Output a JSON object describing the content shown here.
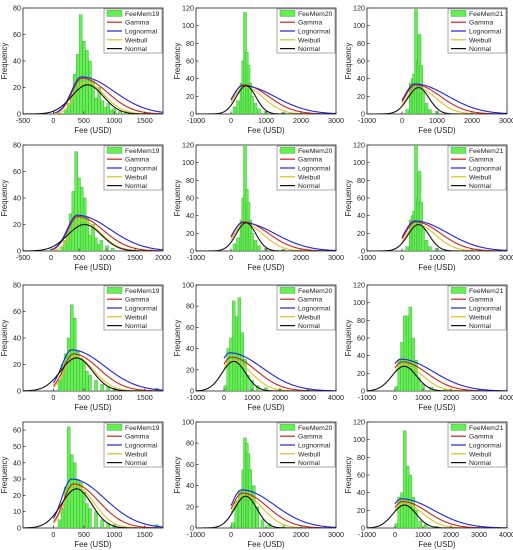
{
  "legend_labels": [
    "Gamma",
    "Lognormal",
    "Weibull",
    "Normal"
  ],
  "colors": {
    "hist": "#66ee55",
    "hist_edge": "#2a9a2a",
    "hist_gray": "#b8b8b8",
    "gamma": "#cc2222",
    "lognormal": "#2222dd",
    "weibull": "#e0c020",
    "normal": "#111111"
  },
  "chart_data": [
    {
      "type": "bar",
      "series": [
        {
          "name": "FeeMem19"
        },
        {
          "name": "Gamma"
        },
        {
          "name": "Lognormal"
        },
        {
          "name": "Weibull"
        },
        {
          "name": "Normal"
        }
      ],
      "xlabel": "Fee (USD)",
      "ylabel": "Frequency",
      "xlim": [
        -500,
        1800
      ],
      "ylim": [
        0,
        80
      ],
      "xticks": [
        -500,
        0,
        500,
        1000,
        1500
      ],
      "yticks": [
        0,
        20,
        40,
        60,
        80
      ],
      "hist_bins": [
        [
          200,
          3
        ],
        [
          250,
          8
        ],
        [
          300,
          15
        ],
        [
          350,
          30
        ],
        [
          400,
          45
        ],
        [
          450,
          75
        ],
        [
          500,
          55
        ],
        [
          550,
          48
        ],
        [
          600,
          40
        ],
        [
          650,
          25
        ],
        [
          700,
          12
        ],
        [
          750,
          20
        ],
        [
          800,
          10
        ],
        [
          850,
          5
        ],
        [
          900,
          8
        ],
        [
          950,
          3
        ],
        [
          1000,
          4
        ],
        [
          1100,
          2
        ],
        [
          1200,
          2
        ],
        [
          1550,
          1
        ]
      ],
      "gamma_peak": [
        470,
        27
      ],
      "lognormal_peak": [
        460,
        28
      ],
      "weibull_peak": [
        520,
        24
      ],
      "normal": {
        "mean": 560,
        "sd": 260,
        "peak": 22
      }
    },
    {
      "type": "bar",
      "series": [
        {
          "name": "FeeMem20"
        },
        {
          "name": "Gamma"
        },
        {
          "name": "Lognormal"
        },
        {
          "name": "Weibull"
        },
        {
          "name": "Normal"
        }
      ],
      "xlabel": "Fee (USD)",
      "ylabel": "Frequency",
      "xlim": [
        -1000,
        3000
      ],
      "ylim": [
        0,
        120
      ],
      "xticks": [
        -1000,
        0,
        1000,
        2000,
        3000
      ],
      "yticks": [
        0,
        20,
        40,
        60,
        80,
        100,
        120
      ],
      "hist_bins": [
        [
          100,
          8
        ],
        [
          200,
          15
        ],
        [
          300,
          35
        ],
        [
          350,
          60
        ],
        [
          400,
          115
        ],
        [
          450,
          70
        ],
        [
          500,
          55
        ],
        [
          550,
          35
        ],
        [
          600,
          20
        ],
        [
          700,
          12
        ],
        [
          800,
          6
        ],
        [
          1000,
          3
        ],
        [
          1500,
          2
        ]
      ],
      "gamma_peak": [
        350,
        33
      ],
      "lognormal_peak": [
        330,
        32
      ],
      "weibull_peak": [
        380,
        31
      ],
      "normal": {
        "mean": 430,
        "sd": 280,
        "peak": 32
      }
    },
    {
      "type": "bar",
      "series": [
        {
          "name": "FeeMem21"
        },
        {
          "name": "Gamma"
        },
        {
          "name": "Lognormal"
        },
        {
          "name": "Weibull"
        },
        {
          "name": "Normal"
        }
      ],
      "xlabel": "Fee (USD)",
      "ylabel": "Frequency",
      "xlim": [
        -1000,
        3000
      ],
      "ylim": [
        0,
        120
      ],
      "xticks": [
        -1000,
        0,
        1000,
        2000,
        3000
      ],
      "yticks": [
        0,
        20,
        40,
        60,
        80,
        100,
        120
      ],
      "hist_bins": [
        [
          150,
          5
        ],
        [
          250,
          35
        ],
        [
          300,
          40
        ],
        [
          350,
          45
        ],
        [
          400,
          120
        ],
        [
          450,
          60
        ],
        [
          500,
          90
        ],
        [
          550,
          55
        ],
        [
          600,
          25
        ],
        [
          700,
          12
        ],
        [
          800,
          5
        ],
        [
          1000,
          3
        ]
      ],
      "gamma_peak": [
        380,
        33
      ],
      "lognormal_peak": [
        360,
        34
      ],
      "weibull_peak": [
        420,
        30
      ],
      "normal": {
        "mean": 470,
        "sd": 300,
        "peak": 30
      }
    },
    {
      "type": "bar",
      "series": [
        {
          "name": "FeeMem19"
        },
        {
          "name": "Gamma"
        },
        {
          "name": "Lognormal"
        },
        {
          "name": "Weibull"
        },
        {
          "name": "Normal"
        }
      ],
      "xlabel": "Fee (USD)",
      "ylabel": "Frequency",
      "xlim": [
        -500,
        2000
      ],
      "ylim": [
        0,
        80
      ],
      "xticks": [
        -500,
        0,
        500,
        1000,
        1500,
        2000
      ],
      "yticks": [
        0,
        20,
        40,
        60,
        80
      ],
      "hist_bins": [
        [
          200,
          3
        ],
        [
          250,
          8
        ],
        [
          300,
          15
        ],
        [
          350,
          28
        ],
        [
          400,
          45
        ],
        [
          450,
          75
        ],
        [
          500,
          55
        ],
        [
          550,
          48
        ],
        [
          600,
          40
        ],
        [
          650,
          25
        ],
        [
          700,
          12
        ],
        [
          750,
          20
        ],
        [
          800,
          10
        ],
        [
          850,
          5
        ],
        [
          900,
          8
        ],
        [
          1000,
          4
        ],
        [
          1100,
          2
        ],
        [
          1800,
          1
        ]
      ],
      "gamma_peak": [
        480,
        26
      ],
      "lognormal_peak": [
        470,
        27
      ],
      "weibull_peak": [
        540,
        23
      ],
      "normal": {
        "mean": 600,
        "sd": 300,
        "peak": 20
      }
    },
    {
      "type": "bar",
      "series": [
        {
          "name": "FeeMem20"
        },
        {
          "name": "Gamma"
        },
        {
          "name": "Lognormal"
        },
        {
          "name": "Weibull"
        },
        {
          "name": "Normal"
        }
      ],
      "xlabel": "Fee (USD)",
      "ylabel": "Frequency",
      "xlim": [
        -1000,
        3000
      ],
      "ylim": [
        0,
        120
      ],
      "xticks": [
        -1000,
        0,
        1000,
        2000,
        3000
      ],
      "yticks": [
        0,
        20,
        40,
        60,
        80,
        100,
        120
      ],
      "hist_bins": [
        [
          100,
          8
        ],
        [
          200,
          15
        ],
        [
          300,
          35
        ],
        [
          350,
          60
        ],
        [
          400,
          120
        ],
        [
          450,
          70
        ],
        [
          500,
          55
        ],
        [
          550,
          35
        ],
        [
          600,
          20
        ],
        [
          700,
          12
        ],
        [
          800,
          6
        ],
        [
          1000,
          3
        ],
        [
          1500,
          2
        ]
      ],
      "gamma_peak": [
        350,
        33
      ],
      "lognormal_peak": [
        330,
        32
      ],
      "weibull_peak": [
        380,
        31
      ],
      "normal": {
        "mean": 430,
        "sd": 280,
        "peak": 32
      }
    },
    {
      "type": "bar",
      "series": [
        {
          "name": "FeeMem21"
        },
        {
          "name": "Gamma"
        },
        {
          "name": "Lognormal"
        },
        {
          "name": "Weibull"
        },
        {
          "name": "Normal"
        }
      ],
      "xlabel": "Fee (USD)",
      "ylabel": "Frequency",
      "xlim": [
        -1000,
        3000
      ],
      "ylim": [
        0,
        120
      ],
      "xticks": [
        -1000,
        0,
        1000,
        2000,
        3000
      ],
      "yticks": [
        0,
        20,
        40,
        60,
        80,
        100,
        120
      ],
      "hist_bins": [
        [
          150,
          5
        ],
        [
          250,
          35
        ],
        [
          300,
          40
        ],
        [
          350,
          45
        ],
        [
          400,
          120
        ],
        [
          450,
          60
        ],
        [
          500,
          90
        ],
        [
          550,
          55
        ],
        [
          600,
          25
        ],
        [
          700,
          12
        ],
        [
          800,
          5
        ],
        [
          1000,
          3
        ]
      ],
      "gamma_peak": [
        380,
        33
      ],
      "lognormal_peak": [
        360,
        34
      ],
      "weibull_peak": [
        420,
        30
      ],
      "normal": {
        "mean": 470,
        "sd": 300,
        "peak": 30
      }
    },
    {
      "type": "bar",
      "series": [
        {
          "name": "FeeMem19"
        },
        {
          "name": "Gamma"
        },
        {
          "name": "Lognormal"
        },
        {
          "name": "Weibull"
        },
        {
          "name": "Normal"
        }
      ],
      "xlabel": "Fee (USD)",
      "ylabel": "Frequency",
      "xlim": [
        -500,
        1800
      ],
      "ylim": [
        0,
        80
      ],
      "xticks": [
        0,
        500,
        1000,
        1500
      ],
      "yticks": [
        0,
        20,
        40,
        60,
        80
      ],
      "hist_bins": [
        [
          100,
          8
        ],
        [
          150,
          20
        ],
        [
          200,
          28
        ],
        [
          250,
          40
        ],
        [
          300,
          65
        ],
        [
          350,
          55
        ],
        [
          400,
          30
        ],
        [
          450,
          25
        ],
        [
          500,
          22
        ],
        [
          550,
          15
        ],
        [
          600,
          12
        ],
        [
          700,
          8
        ],
        [
          800,
          5
        ],
        [
          900,
          3
        ],
        [
          1000,
          2
        ],
        [
          1700,
          2
        ]
      ],
      "gamma_peak": [
        330,
        28
      ],
      "lognormal_peak": [
        300,
        31
      ],
      "weibull_peak": [
        350,
        26
      ],
      "normal": {
        "mean": 380,
        "sd": 260,
        "peak": 25
      }
    },
    {
      "type": "bar",
      "series": [
        {
          "name": "FeeMem20"
        },
        {
          "name": "Gamma"
        },
        {
          "name": "Lognormal"
        },
        {
          "name": "Weibull"
        },
        {
          "name": "Normal"
        }
      ],
      "xlabel": "Fee (USD)",
      "ylabel": "Frequency",
      "xlim": [
        -1000,
        4000
      ],
      "ylim": [
        0,
        100
      ],
      "xticks": [
        -1000,
        0,
        1000,
        2000,
        3000,
        4000
      ],
      "yticks": [
        0,
        20,
        40,
        60,
        80,
        100
      ],
      "hist_bins": [
        [
          50,
          5
        ],
        [
          150,
          40
        ],
        [
          250,
          50
        ],
        [
          350,
          85
        ],
        [
          450,
          70
        ],
        [
          550,
          88
        ],
        [
          650,
          55
        ],
        [
          750,
          30
        ],
        [
          850,
          15
        ],
        [
          1000,
          10
        ],
        [
          1200,
          5
        ],
        [
          1500,
          3
        ],
        [
          2000,
          2
        ],
        [
          3000,
          1
        ]
      ],
      "gamma_peak": [
        250,
        32
      ],
      "lognormal_peak": [
        200,
        36
      ],
      "weibull_peak": [
        280,
        29
      ],
      "normal": {
        "mean": 350,
        "sd": 420,
        "peak": 28
      }
    },
    {
      "type": "bar",
      "series": [
        {
          "name": "FeeMem21"
        },
        {
          "name": "Gamma"
        },
        {
          "name": "Lognormal"
        },
        {
          "name": "Weibull"
        },
        {
          "name": "Normal"
        }
      ],
      "xlabel": "Fee (USD)",
      "ylabel": "Frequency",
      "xlim": [
        -1000,
        4000
      ],
      "ylim": [
        0,
        120
      ],
      "xticks": [
        -1000,
        0,
        1000,
        2000,
        3000,
        4000
      ],
      "yticks": [
        0,
        20,
        40,
        60,
        80,
        100,
        120
      ],
      "hist_bins": [
        [
          50,
          5
        ],
        [
          150,
          35
        ],
        [
          250,
          55
        ],
        [
          350,
          85
        ],
        [
          450,
          85
        ],
        [
          550,
          95
        ],
        [
          650,
          60
        ],
        [
          750,
          35
        ],
        [
          850,
          15
        ],
        [
          1000,
          8
        ],
        [
          1300,
          4
        ],
        [
          1800,
          2
        ]
      ],
      "gamma_peak": [
        250,
        33
      ],
      "lognormal_peak": [
        200,
        36
      ],
      "weibull_peak": [
        280,
        30
      ],
      "normal": {
        "mean": 330,
        "sd": 440,
        "peak": 28
      }
    },
    {
      "type": "bar",
      "series": [
        {
          "name": "FeeMem19"
        },
        {
          "name": "Gamma"
        },
        {
          "name": "Lognormal"
        },
        {
          "name": "Weibull"
        },
        {
          "name": "Normal"
        }
      ],
      "xlabel": "Fee (USD)",
      "ylabel": "Frequency",
      "xlim": [
        -500,
        1800
      ],
      "ylim": [
        0,
        65
      ],
      "xticks": [
        0,
        500,
        1000,
        1500
      ],
      "yticks": [
        0,
        10,
        20,
        30,
        40,
        50,
        60
      ],
      "hist_bins": [
        [
          100,
          5
        ],
        [
          150,
          12
        ],
        [
          200,
          25
        ],
        [
          250,
          62
        ],
        [
          300,
          45
        ],
        [
          350,
          40
        ],
        [
          400,
          30
        ],
        [
          450,
          28
        ],
        [
          500,
          22
        ],
        [
          550,
          15
        ],
        [
          600,
          12
        ],
        [
          700,
          10
        ],
        [
          800,
          5
        ],
        [
          900,
          3
        ],
        [
          1000,
          2
        ],
        [
          1700,
          2
        ]
      ],
      "gamma_peak": [
        330,
        27
      ],
      "lognormal_peak": [
        300,
        30
      ],
      "weibull_peak": [
        350,
        26
      ],
      "normal": {
        "mean": 380,
        "sd": 250,
        "peak": 24
      }
    },
    {
      "type": "bar",
      "series": [
        {
          "name": "FeeMem20"
        },
        {
          "name": "Gamma"
        },
        {
          "name": "Lognormal"
        },
        {
          "name": "Weibull"
        },
        {
          "name": "Normal"
        }
      ],
      "xlabel": "Fee (USD)",
      "ylabel": "Frequency",
      "xlim": [
        -1000,
        3000
      ],
      "ylim": [
        0,
        100
      ],
      "xticks": [
        -1000,
        0,
        1000,
        2000,
        3000
      ],
      "yticks": [
        0,
        20,
        40,
        60,
        80,
        100
      ],
      "hist_bins": [
        [
          50,
          5
        ],
        [
          150,
          25
        ],
        [
          250,
          35
        ],
        [
          350,
          55
        ],
        [
          400,
          85
        ],
        [
          450,
          80
        ],
        [
          500,
          70
        ],
        [
          550,
          55
        ],
        [
          650,
          40
        ],
        [
          750,
          20
        ],
        [
          900,
          8
        ],
        [
          1100,
          4
        ],
        [
          1500,
          2
        ]
      ],
      "gamma_peak": [
        320,
        33
      ],
      "lognormal_peak": [
        300,
        36
      ],
      "weibull_peak": [
        360,
        31
      ],
      "normal": {
        "mean": 420,
        "sd": 320,
        "peak": 30
      }
    },
    {
      "type": "bar",
      "series": [
        {
          "name": "FeeMem21"
        },
        {
          "name": "Gamma"
        },
        {
          "name": "Lognormal"
        },
        {
          "name": "Weibull"
        },
        {
          "name": "Normal"
        }
      ],
      "xlabel": "Fee (USD)",
      "ylabel": "Frequency",
      "xlim": [
        -1000,
        4000
      ],
      "ylim": [
        0,
        120
      ],
      "xticks": [
        -1000,
        0,
        1000,
        2000,
        3000,
        4000
      ],
      "yticks": [
        0,
        20,
        40,
        60,
        80,
        100,
        120
      ],
      "hist_bins": [
        [
          50,
          5
        ],
        [
          150,
          35
        ],
        [
          250,
          40
        ],
        [
          350,
          110
        ],
        [
          450,
          70
        ],
        [
          550,
          60
        ],
        [
          650,
          35
        ],
        [
          750,
          20
        ],
        [
          900,
          8
        ],
        [
          1100,
          4
        ],
        [
          1500,
          2
        ]
      ],
      "gamma_peak": [
        260,
        30
      ],
      "lognormal_peak": [
        220,
        33
      ],
      "weibull_peak": [
        300,
        28
      ],
      "normal": {
        "mean": 340,
        "sd": 420,
        "peak": 26
      }
    }
  ]
}
